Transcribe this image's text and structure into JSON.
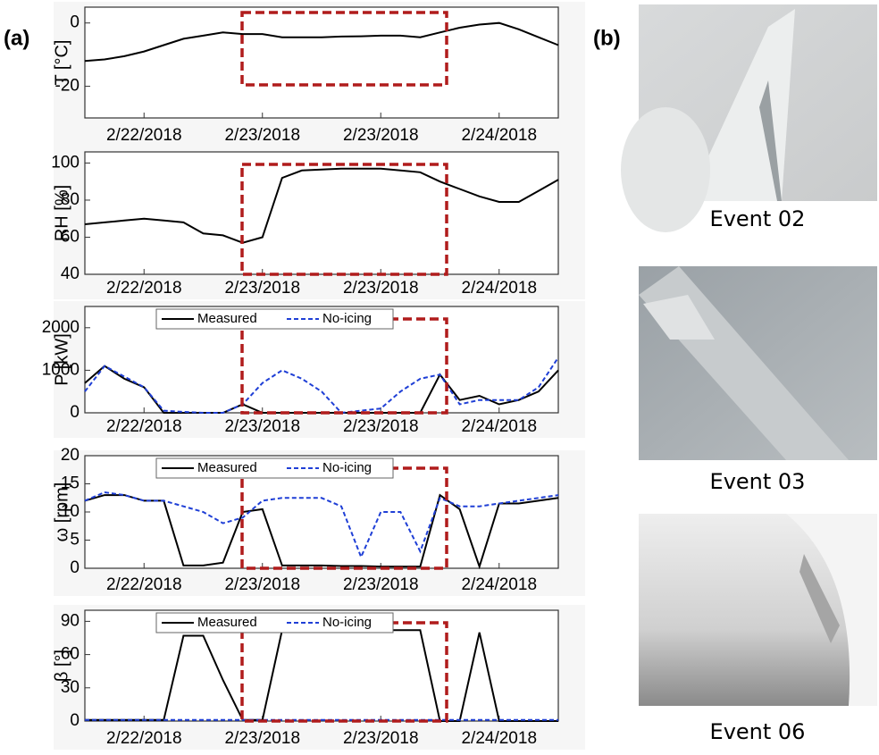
{
  "panel_labels": [
    "(a)",
    "(b)"
  ],
  "photos": [
    {
      "caption": "Event 02"
    },
    {
      "caption": "Event 03"
    },
    {
      "caption": "Event 06"
    }
  ],
  "chart_data": [
    {
      "type": "line",
      "ylabel": "T [°C]",
      "color": "#000000",
      "x": [
        0,
        2,
        4,
        6,
        8,
        10,
        12,
        14,
        16,
        18,
        20,
        22,
        24,
        26,
        28,
        30,
        32,
        34,
        36,
        38,
        40,
        42,
        44,
        46,
        48
      ],
      "values": [
        -12,
        -11.5,
        -10.5,
        -9,
        -7,
        -5,
        -4,
        -3,
        -3.5,
        -3.5,
        -4.5,
        -4.5,
        -4.5,
        -4.3,
        -4.2,
        -4,
        -4,
        -4.5,
        -3,
        -1.5,
        -0.5,
        0,
        -2,
        -4.5,
        -7
      ],
      "xlim": [
        0,
        48
      ],
      "xticks": [
        {
          "value": 6,
          "label": "2/22/2018"
        },
        {
          "value": 18,
          "label": "2/23/2018"
        },
        {
          "value": 30,
          "label": "2/23/2018"
        },
        {
          "value": 42,
          "label": "2/24/2018"
        }
      ],
      "ylim": [
        -30,
        5
      ],
      "yticks": [
        -20,
        0
      ]
    },
    {
      "type": "line",
      "ylabel": "RH [%]",
      "color": "#000000",
      "x": [
        0,
        2,
        4,
        6,
        8,
        10,
        12,
        14,
        16,
        18,
        20,
        22,
        24,
        26,
        28,
        30,
        32,
        34,
        36,
        38,
        40,
        42,
        44,
        46,
        48
      ],
      "values": [
        67,
        68,
        69,
        70,
        69,
        68,
        62,
        61,
        57,
        60,
        92,
        96,
        96.5,
        97,
        97,
        97,
        96,
        95,
        90,
        86,
        82,
        79,
        79,
        85,
        91
      ],
      "xlim": [
        0,
        48
      ],
      "xticks": [
        {
          "value": 6,
          "label": "2/22/2018"
        },
        {
          "value": 18,
          "label": "2/23/2018"
        },
        {
          "value": 30,
          "label": "2/23/2018"
        },
        {
          "value": 42,
          "label": "2/24/2018"
        }
      ],
      "ylim": [
        40,
        106
      ],
      "yticks": [
        40,
        60,
        80,
        100
      ]
    },
    {
      "type": "line",
      "ylabel": "P [kW]",
      "legend": "top",
      "x": [
        0,
        2,
        4,
        6,
        8,
        10,
        12,
        14,
        16,
        18,
        20,
        22,
        24,
        26,
        28,
        30,
        32,
        34,
        36,
        38,
        40,
        42,
        44,
        46,
        48
      ],
      "series": [
        {
          "name": "Measured",
          "color": "#000000",
          "values": [
            700,
            1100,
            800,
            600,
            0,
            0,
            0,
            0,
            200,
            0,
            0,
            0,
            0,
            0,
            0,
            0,
            0,
            0,
            900,
            300,
            400,
            200,
            300,
            500,
            1000
          ]
        },
        {
          "name": "No-icing",
          "color": "#1f3fd6",
          "dashed": true,
          "values": [
            500,
            1100,
            850,
            600,
            50,
            20,
            0,
            0,
            200,
            700,
            1000,
            800,
            500,
            0,
            50,
            100,
            500,
            800,
            900,
            200,
            300,
            300,
            300,
            600,
            1300
          ]
        }
      ],
      "xlim": [
        0,
        48
      ],
      "xticks": [
        {
          "value": 6,
          "label": "2/22/2018"
        },
        {
          "value": 18,
          "label": "2/23/2018"
        },
        {
          "value": 30,
          "label": "2/23/2018"
        },
        {
          "value": 42,
          "label": "2/24/2018"
        }
      ],
      "ylim": [
        0,
        2500
      ],
      "yticks": [
        0,
        1000,
        2000
      ]
    },
    {
      "type": "line",
      "ylabel": "ω [rpm]",
      "legend": "top",
      "x": [
        0,
        2,
        4,
        6,
        8,
        10,
        12,
        14,
        16,
        18,
        20,
        22,
        24,
        26,
        28,
        30,
        32,
        34,
        36,
        38,
        40,
        42,
        44,
        46,
        48
      ],
      "series": [
        {
          "name": "Measured",
          "color": "#000000",
          "values": [
            12,
            13,
            13,
            12,
            12,
            0.5,
            0.5,
            1,
            10,
            10.5,
            0.5,
            0.5,
            0.5,
            0.4,
            0.4,
            0.3,
            0.3,
            0.3,
            13,
            10.5,
            0.3,
            11.5,
            11.5,
            12,
            12.5
          ]
        },
        {
          "name": "No-icing",
          "color": "#1f3fd6",
          "dashed": true,
          "values": [
            12,
            13.5,
            13,
            12,
            12,
            11,
            10,
            8,
            9,
            12,
            12.5,
            12.5,
            12.5,
            11,
            2,
            10,
            10,
            3,
            12.5,
            11,
            11,
            11.5,
            12,
            12.5,
            13
          ]
        }
      ],
      "xlim": [
        0,
        48
      ],
      "xticks": [
        {
          "value": 6,
          "label": "2/22/2018"
        },
        {
          "value": 18,
          "label": "2/23/2018"
        },
        {
          "value": 30,
          "label": "2/23/2018"
        },
        {
          "value": 42,
          "label": "2/24/2018"
        }
      ],
      "ylim": [
        0,
        20
      ],
      "yticks": [
        0,
        5,
        10,
        15,
        20
      ]
    },
    {
      "type": "line",
      "ylabel": "β [°]",
      "legend": "top",
      "x": [
        0,
        2,
        4,
        6,
        8,
        10,
        12,
        14,
        16,
        18,
        20,
        22,
        24,
        26,
        28,
        30,
        32,
        34,
        36,
        38,
        40,
        42,
        44,
        46,
        48
      ],
      "series": [
        {
          "name": "Measured",
          "color": "#000000",
          "values": [
            1,
            1,
            1,
            1,
            1,
            77,
            77,
            37,
            1,
            1,
            82,
            82,
            82,
            82,
            82,
            82,
            82,
            82,
            0,
            0,
            80,
            0,
            0,
            0,
            0
          ]
        },
        {
          "name": "No-icing",
          "color": "#1f3fd6",
          "dashed": true,
          "values": [
            1,
            1,
            1,
            1,
            1,
            1,
            1,
            1,
            1,
            1,
            1,
            1,
            1,
            1,
            1,
            1,
            1,
            1,
            1,
            1,
            1,
            1,
            1,
            1,
            1
          ]
        }
      ],
      "xlim": [
        0,
        48
      ],
      "xticks": [
        {
          "value": 6,
          "label": "2/22/2018"
        },
        {
          "value": 18,
          "label": "2/23/2018"
        },
        {
          "value": 30,
          "label": "2/23/2018"
        },
        {
          "value": 42,
          "label": "2/24/2018"
        }
      ],
      "ylim": [
        0,
        100
      ],
      "yticks": [
        0,
        30,
        60,
        90
      ]
    }
  ]
}
